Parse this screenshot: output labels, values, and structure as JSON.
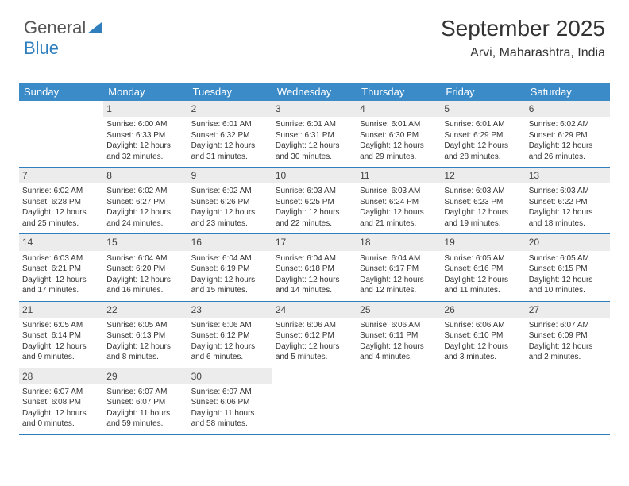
{
  "logo": {
    "text1": "General",
    "text2": "Blue"
  },
  "title": "September 2025",
  "location": "Arvi, Maharashtra, India",
  "accent_color": "#3b8bc9",
  "rule_color": "#2f7fbf",
  "daynum_bg": "#ececec",
  "background": "#ffffff",
  "text_color": "#333333",
  "days_of_week": [
    "Sunday",
    "Monday",
    "Tuesday",
    "Wednesday",
    "Thursday",
    "Friday",
    "Saturday"
  ],
  "weeks": [
    [
      {
        "n": "",
        "sr": "",
        "ss": "",
        "dl": ""
      },
      {
        "n": "1",
        "sr": "Sunrise: 6:00 AM",
        "ss": "Sunset: 6:33 PM",
        "dl": "Daylight: 12 hours and 32 minutes."
      },
      {
        "n": "2",
        "sr": "Sunrise: 6:01 AM",
        "ss": "Sunset: 6:32 PM",
        "dl": "Daylight: 12 hours and 31 minutes."
      },
      {
        "n": "3",
        "sr": "Sunrise: 6:01 AM",
        "ss": "Sunset: 6:31 PM",
        "dl": "Daylight: 12 hours and 30 minutes."
      },
      {
        "n": "4",
        "sr": "Sunrise: 6:01 AM",
        "ss": "Sunset: 6:30 PM",
        "dl": "Daylight: 12 hours and 29 minutes."
      },
      {
        "n": "5",
        "sr": "Sunrise: 6:01 AM",
        "ss": "Sunset: 6:29 PM",
        "dl": "Daylight: 12 hours and 28 minutes."
      },
      {
        "n": "6",
        "sr": "Sunrise: 6:02 AM",
        "ss": "Sunset: 6:29 PM",
        "dl": "Daylight: 12 hours and 26 minutes."
      }
    ],
    [
      {
        "n": "7",
        "sr": "Sunrise: 6:02 AM",
        "ss": "Sunset: 6:28 PM",
        "dl": "Daylight: 12 hours and 25 minutes."
      },
      {
        "n": "8",
        "sr": "Sunrise: 6:02 AM",
        "ss": "Sunset: 6:27 PM",
        "dl": "Daylight: 12 hours and 24 minutes."
      },
      {
        "n": "9",
        "sr": "Sunrise: 6:02 AM",
        "ss": "Sunset: 6:26 PM",
        "dl": "Daylight: 12 hours and 23 minutes."
      },
      {
        "n": "10",
        "sr": "Sunrise: 6:03 AM",
        "ss": "Sunset: 6:25 PM",
        "dl": "Daylight: 12 hours and 22 minutes."
      },
      {
        "n": "11",
        "sr": "Sunrise: 6:03 AM",
        "ss": "Sunset: 6:24 PM",
        "dl": "Daylight: 12 hours and 21 minutes."
      },
      {
        "n": "12",
        "sr": "Sunrise: 6:03 AM",
        "ss": "Sunset: 6:23 PM",
        "dl": "Daylight: 12 hours and 19 minutes."
      },
      {
        "n": "13",
        "sr": "Sunrise: 6:03 AM",
        "ss": "Sunset: 6:22 PM",
        "dl": "Daylight: 12 hours and 18 minutes."
      }
    ],
    [
      {
        "n": "14",
        "sr": "Sunrise: 6:03 AM",
        "ss": "Sunset: 6:21 PM",
        "dl": "Daylight: 12 hours and 17 minutes."
      },
      {
        "n": "15",
        "sr": "Sunrise: 6:04 AM",
        "ss": "Sunset: 6:20 PM",
        "dl": "Daylight: 12 hours and 16 minutes."
      },
      {
        "n": "16",
        "sr": "Sunrise: 6:04 AM",
        "ss": "Sunset: 6:19 PM",
        "dl": "Daylight: 12 hours and 15 minutes."
      },
      {
        "n": "17",
        "sr": "Sunrise: 6:04 AM",
        "ss": "Sunset: 6:18 PM",
        "dl": "Daylight: 12 hours and 14 minutes."
      },
      {
        "n": "18",
        "sr": "Sunrise: 6:04 AM",
        "ss": "Sunset: 6:17 PM",
        "dl": "Daylight: 12 hours and 12 minutes."
      },
      {
        "n": "19",
        "sr": "Sunrise: 6:05 AM",
        "ss": "Sunset: 6:16 PM",
        "dl": "Daylight: 12 hours and 11 minutes."
      },
      {
        "n": "20",
        "sr": "Sunrise: 6:05 AM",
        "ss": "Sunset: 6:15 PM",
        "dl": "Daylight: 12 hours and 10 minutes."
      }
    ],
    [
      {
        "n": "21",
        "sr": "Sunrise: 6:05 AM",
        "ss": "Sunset: 6:14 PM",
        "dl": "Daylight: 12 hours and 9 minutes."
      },
      {
        "n": "22",
        "sr": "Sunrise: 6:05 AM",
        "ss": "Sunset: 6:13 PM",
        "dl": "Daylight: 12 hours and 8 minutes."
      },
      {
        "n": "23",
        "sr": "Sunrise: 6:06 AM",
        "ss": "Sunset: 6:12 PM",
        "dl": "Daylight: 12 hours and 6 minutes."
      },
      {
        "n": "24",
        "sr": "Sunrise: 6:06 AM",
        "ss": "Sunset: 6:12 PM",
        "dl": "Daylight: 12 hours and 5 minutes."
      },
      {
        "n": "25",
        "sr": "Sunrise: 6:06 AM",
        "ss": "Sunset: 6:11 PM",
        "dl": "Daylight: 12 hours and 4 minutes."
      },
      {
        "n": "26",
        "sr": "Sunrise: 6:06 AM",
        "ss": "Sunset: 6:10 PM",
        "dl": "Daylight: 12 hours and 3 minutes."
      },
      {
        "n": "27",
        "sr": "Sunrise: 6:07 AM",
        "ss": "Sunset: 6:09 PM",
        "dl": "Daylight: 12 hours and 2 minutes."
      }
    ],
    [
      {
        "n": "28",
        "sr": "Sunrise: 6:07 AM",
        "ss": "Sunset: 6:08 PM",
        "dl": "Daylight: 12 hours and 0 minutes."
      },
      {
        "n": "29",
        "sr": "Sunrise: 6:07 AM",
        "ss": "Sunset: 6:07 PM",
        "dl": "Daylight: 11 hours and 59 minutes."
      },
      {
        "n": "30",
        "sr": "Sunrise: 6:07 AM",
        "ss": "Sunset: 6:06 PM",
        "dl": "Daylight: 11 hours and 58 minutes."
      },
      {
        "n": "",
        "sr": "",
        "ss": "",
        "dl": ""
      },
      {
        "n": "",
        "sr": "",
        "ss": "",
        "dl": ""
      },
      {
        "n": "",
        "sr": "",
        "ss": "",
        "dl": ""
      },
      {
        "n": "",
        "sr": "",
        "ss": "",
        "dl": ""
      }
    ]
  ]
}
